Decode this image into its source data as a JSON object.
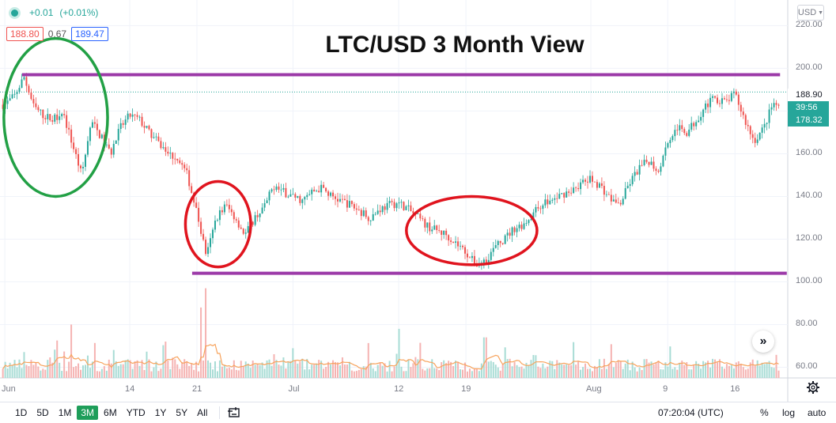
{
  "title": "LTC/USD 3 Month View",
  "change": {
    "value": "+0.01",
    "percent": "(+0.01%)"
  },
  "quote": {
    "bid": "188.80",
    "spread": "0.67",
    "ask": "189.47"
  },
  "currency": "USD",
  "price_tags": {
    "last": "188.90",
    "countdown": "39:56",
    "price": "178.32"
  },
  "time_readout": "07:20:04 (UTC)",
  "ranges": [
    "1D",
    "5D",
    "1M",
    "3M",
    "6M",
    "YTD",
    "1Y",
    "5Y",
    "All"
  ],
  "active_range": "3M",
  "scale_buttons": {
    "percent": "%",
    "log": "log",
    "auto": "auto"
  },
  "icons": {
    "compare": "compare-icon",
    "settings": "gear-icon",
    "scroll": "chevron-double-right-icon"
  },
  "colors": {
    "up": "#26a69a",
    "down": "#ef5350",
    "resistance_line": "#9c3aa8",
    "green_circle": "#22a045",
    "red_circle": "#e0141e",
    "volume_ma": "#f7a35c"
  },
  "chart_data": {
    "type": "candlestick",
    "title": "LTC/USD 3 Month View",
    "y_ticks": [
      60,
      80,
      100,
      120,
      140,
      160,
      180,
      200,
      220
    ],
    "x_ticks": [
      {
        "label": "Jun",
        "day": 0
      },
      {
        "label": "14",
        "day": 13
      },
      {
        "label": "21",
        "day": 20
      },
      {
        "label": "Jul",
        "day": 30
      },
      {
        "label": "12",
        "day": 41
      },
      {
        "label": "19",
        "day": 48
      },
      {
        "label": "Aug",
        "day": 61
      },
      {
        "label": "9",
        "day": 69
      },
      {
        "label": "16",
        "day": 76
      }
    ],
    "ylim": [
      55,
      232
    ],
    "day_range": [
      -0.5,
      81.5
    ],
    "price_path": [
      [
        0,
        183
      ],
      [
        1,
        187
      ],
      [
        2,
        196
      ],
      [
        3,
        182
      ],
      [
        4,
        178
      ],
      [
        5,
        176
      ],
      [
        6,
        180
      ],
      [
        7,
        165
      ],
      [
        8,
        150
      ],
      [
        9,
        175
      ],
      [
        10,
        168
      ],
      [
        11,
        160
      ],
      [
        12,
        172
      ],
      [
        13,
        178
      ],
      [
        14,
        176
      ],
      [
        15,
        170
      ],
      [
        16,
        165
      ],
      [
        17,
        160
      ],
      [
        18,
        158
      ],
      [
        19,
        150
      ],
      [
        20,
        132
      ],
      [
        21,
        112
      ],
      [
        22,
        130
      ],
      [
        23,
        136
      ],
      [
        24,
        130
      ],
      [
        25,
        122
      ],
      [
        26,
        130
      ],
      [
        27,
        135
      ],
      [
        28,
        145
      ],
      [
        29,
        142
      ],
      [
        30,
        140
      ],
      [
        31,
        138
      ],
      [
        32,
        142
      ],
      [
        33,
        144
      ],
      [
        34,
        140
      ],
      [
        35,
        138
      ],
      [
        36,
        136
      ],
      [
        37,
        133
      ],
      [
        38,
        130
      ],
      [
        39,
        134
      ],
      [
        40,
        136
      ],
      [
        41,
        137
      ],
      [
        42,
        134
      ],
      [
        43,
        130
      ],
      [
        44,
        126
      ],
      [
        45,
        124
      ],
      [
        46,
        122
      ],
      [
        47,
        118
      ],
      [
        48,
        114
      ],
      [
        49,
        108
      ],
      [
        50,
        110
      ],
      [
        51,
        116
      ],
      [
        52,
        120
      ],
      [
        53,
        125
      ],
      [
        54,
        127
      ],
      [
        55,
        132
      ],
      [
        56,
        137
      ],
      [
        57,
        138
      ],
      [
        58,
        141
      ],
      [
        59,
        143
      ],
      [
        60,
        146
      ],
      [
        61,
        148
      ],
      [
        62,
        145
      ],
      [
        63,
        139
      ],
      [
        64,
        136
      ],
      [
        65,
        146
      ],
      [
        66,
        153
      ],
      [
        67,
        157
      ],
      [
        68,
        152
      ],
      [
        69,
        166
      ],
      [
        70,
        172
      ],
      [
        71,
        170
      ],
      [
        72,
        176
      ],
      [
        73,
        183
      ],
      [
        74,
        186
      ],
      [
        75,
        184
      ],
      [
        76,
        188
      ],
      [
        77,
        176
      ],
      [
        78,
        166
      ],
      [
        79,
        172
      ],
      [
        80,
        184
      ],
      [
        81,
        178
      ]
    ],
    "volume_spikes": [
      {
        "day": 21,
        "value": 97
      },
      {
        "day": 20.5,
        "value": 88
      },
      {
        "day": 7,
        "value": 80
      },
      {
        "day": 41,
        "value": 78
      },
      {
        "day": 50,
        "value": 74
      }
    ],
    "horizontal_lines": [
      {
        "price": 197,
        "from_day": 1.8,
        "to_day": 80.7
      },
      {
        "price": 104,
        "from_day": 19.5,
        "to_day": 81.4
      }
    ],
    "annotations": [
      {
        "shape": "ellipse",
        "color": "green",
        "center_day": 5.3,
        "center_price": 177,
        "rx_days": 5.4,
        "ry_price": 37
      },
      {
        "shape": "ellipse",
        "color": "red",
        "center_day": 22.2,
        "center_price": 127,
        "rx_days": 3.4,
        "ry_price": 20
      },
      {
        "shape": "ellipse",
        "color": "red",
        "center_day": 48.6,
        "center_price": 124,
        "rx_days": 6.8,
        "ry_price": 16
      }
    ]
  }
}
